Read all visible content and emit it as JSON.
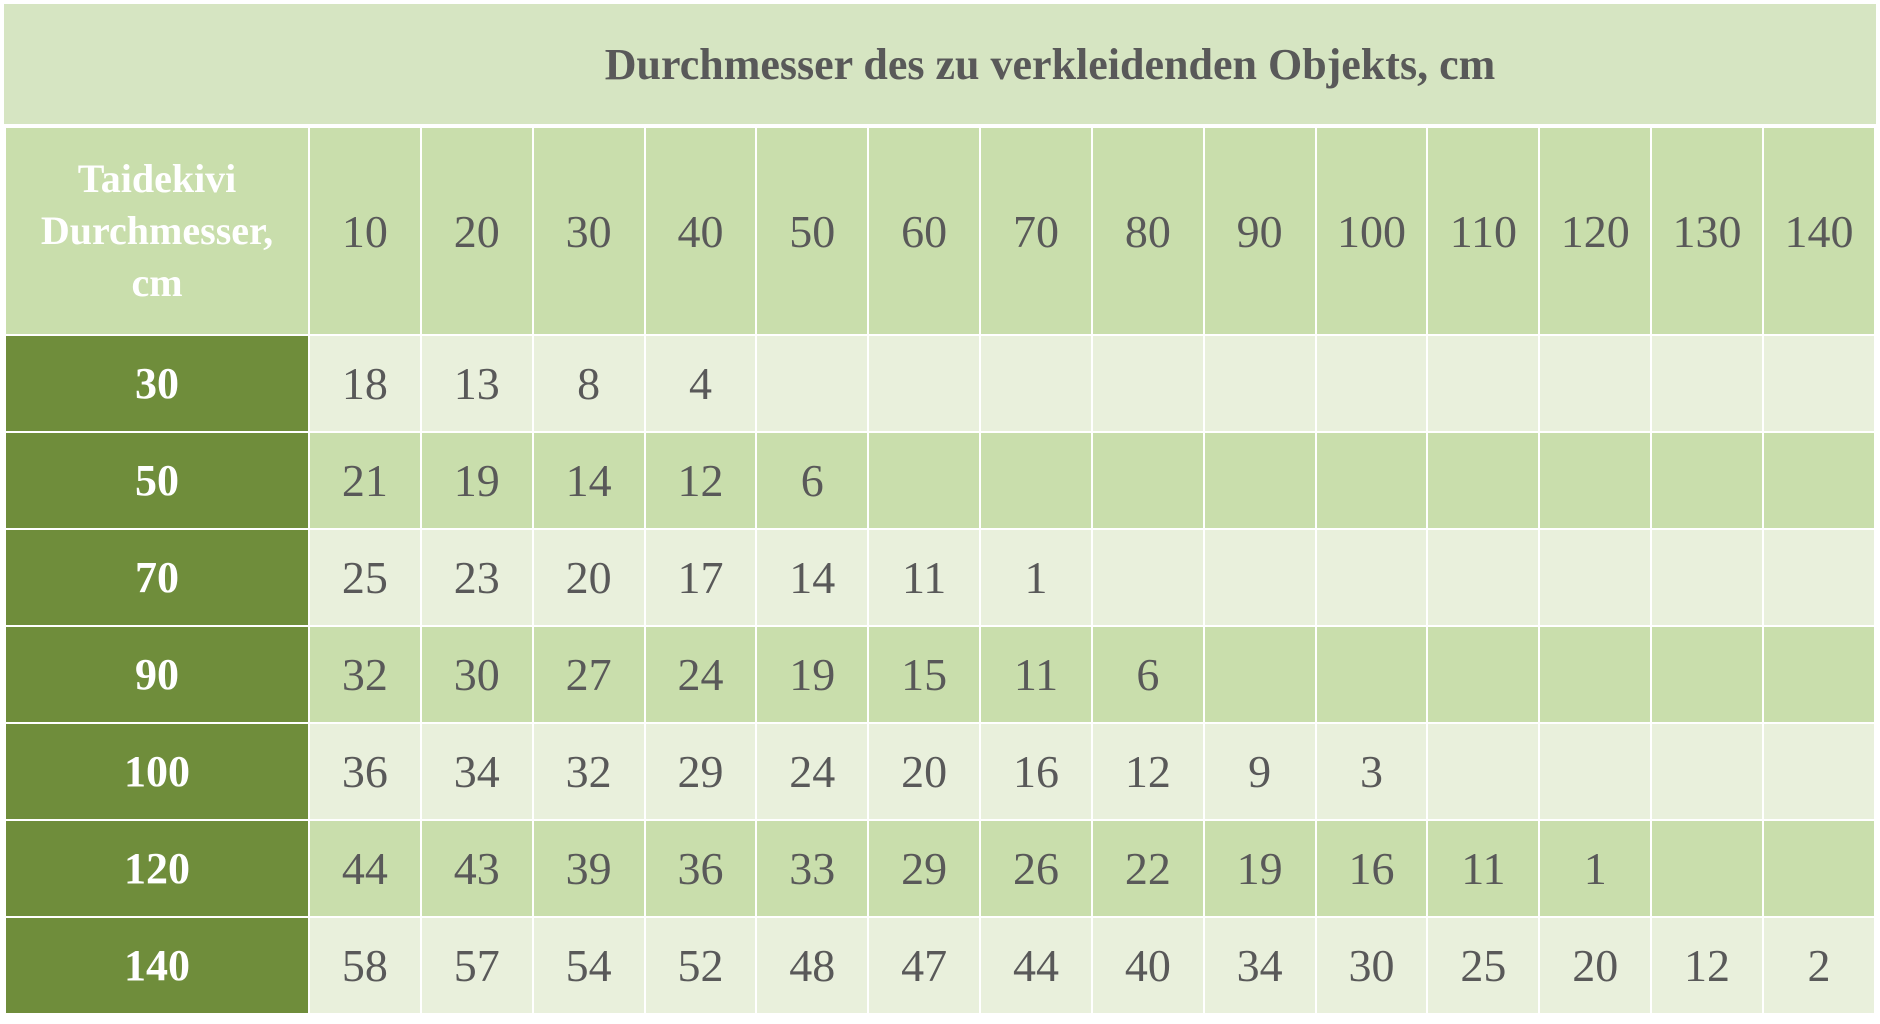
{
  "chart_data": {
    "type": "table",
    "title": "Durchmesser des zu verkleidenden Objekts, cm",
    "corner_label": [
      "Taidekivi",
      "Durchmesser,",
      "cm"
    ],
    "columns": [
      "10",
      "20",
      "30",
      "40",
      "50",
      "60",
      "70",
      "80",
      "90",
      "100",
      "110",
      "120",
      "130",
      "140"
    ],
    "rows": [
      {
        "label": "30",
        "values": [
          "18",
          "13",
          "8",
          "4",
          "",
          "",
          "",
          "",
          "",
          "",
          "",
          "",
          "",
          ""
        ]
      },
      {
        "label": "50",
        "values": [
          "21",
          "19",
          "14",
          "12",
          "6",
          "",
          "",
          "",
          "",
          "",
          "",
          "",
          "",
          ""
        ]
      },
      {
        "label": "70",
        "values": [
          "25",
          "23",
          "20",
          "17",
          "14",
          "11",
          "1",
          "",
          "",
          "",
          "",
          "",
          "",
          ""
        ]
      },
      {
        "label": "90",
        "values": [
          "32",
          "30",
          "27",
          "24",
          "19",
          "15",
          "11",
          "6",
          "",
          "",
          "",
          "",
          "",
          ""
        ]
      },
      {
        "label": "100",
        "values": [
          "36",
          "34",
          "32",
          "29",
          "24",
          "20",
          "16",
          "12",
          "9",
          "3",
          "",
          "",
          "",
          ""
        ]
      },
      {
        "label": "120",
        "values": [
          "44",
          "43",
          "39",
          "36",
          "33",
          "29",
          "26",
          "22",
          "19",
          "16",
          "11",
          "1",
          "",
          ""
        ]
      },
      {
        "label": "140",
        "values": [
          "58",
          "57",
          "54",
          "52",
          "48",
          "47",
          "44",
          "40",
          "34",
          "30",
          "25",
          "20",
          "12",
          "2"
        ]
      }
    ],
    "colors": {
      "header_green": "#6f8d3b",
      "title_band": "#d6e5c2",
      "band_dark": "#c9deac",
      "band_light": "#e9f0dc",
      "text": "#595959"
    }
  }
}
